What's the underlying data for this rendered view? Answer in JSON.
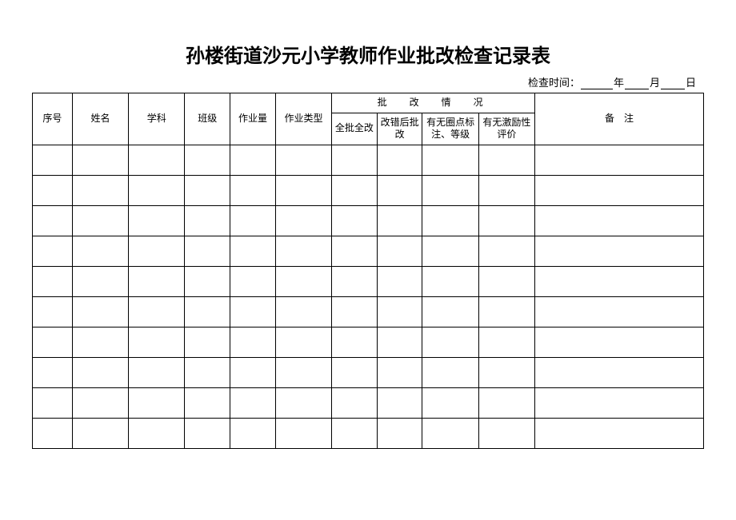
{
  "title": "孙楼街道沙元小学教师作业批改检查记录表",
  "date_label_prefix": "检查时间：",
  "date_year_suffix": "年",
  "date_month_suffix": "月",
  "date_day_suffix": "日",
  "section_header": "批　改　情　况",
  "headers": {
    "col1": "序号",
    "col2": "姓名",
    "col3": "学科",
    "col4": "班级",
    "col5": "作业量",
    "col6": "作业类型",
    "col11": "备　注",
    "sub1": "全批全改",
    "sub2": "改错后批改",
    "sub3": "有无圈点标注、等级",
    "sub4": "有无激励性评价"
  },
  "column_widths": {
    "col1": 44,
    "col2": 62,
    "col3": 62,
    "col4": 50,
    "col5": 50,
    "col6": 62,
    "sub1": 50,
    "sub2": 50,
    "sub3": 62,
    "sub4": 62,
    "col11": 186
  },
  "num_data_rows": 10
}
